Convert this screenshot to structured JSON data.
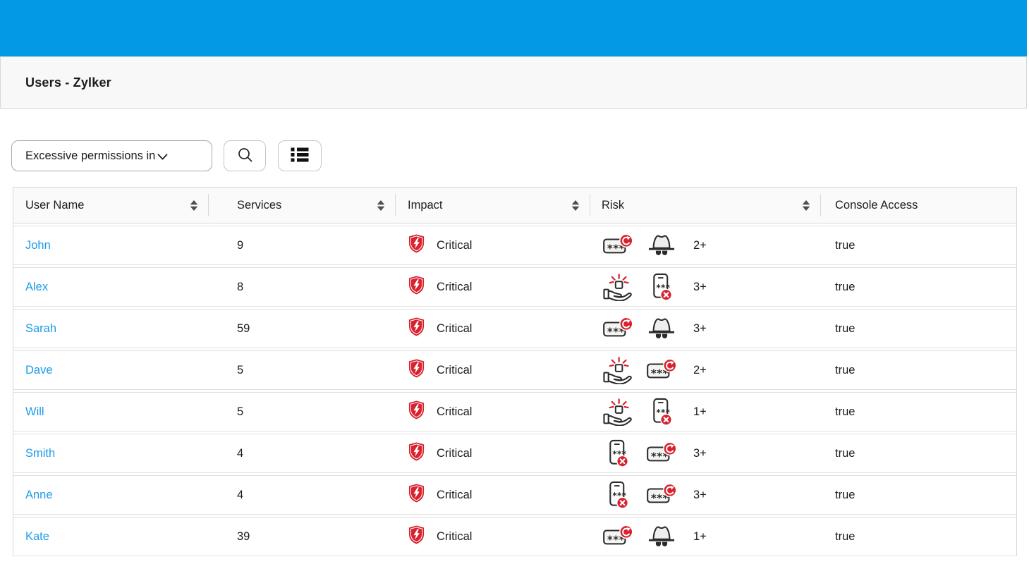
{
  "colors": {
    "topbar_blue": "#0499e4",
    "link_blue": "#1d9be9",
    "critical_red": "#d8222f"
  },
  "header": {
    "title": "Users - Zylker"
  },
  "toolbar": {
    "filter_dropdown": {
      "value": "Excessive permissions in",
      "icon": "chevron-down-icon"
    },
    "search_button": {
      "icon": "search-icon"
    },
    "list_view_button": {
      "icon": "list-view-icon"
    }
  },
  "table": {
    "columns": [
      {
        "key": "user_name",
        "label": "User Name",
        "sortable": true
      },
      {
        "key": "services",
        "label": "Services",
        "sortable": true
      },
      {
        "key": "impact",
        "label": "Impact",
        "sortable": true
      },
      {
        "key": "risk",
        "label": "Risk",
        "sortable": true
      },
      {
        "key": "console_access",
        "label": "Console Access",
        "sortable": false
      }
    ],
    "rows": [
      {
        "user_name": "John",
        "services": "9",
        "impact": {
          "icon": "critical-shield-icon",
          "label": "Critical"
        },
        "risk": {
          "icons": [
            "password-rotation-icon",
            "incognito-user-icon"
          ],
          "count": "2+"
        },
        "console_access": "true"
      },
      {
        "user_name": "Alex",
        "services": "8",
        "impact": {
          "icon": "critical-shield-icon",
          "label": "Critical"
        },
        "risk": {
          "icons": [
            "hand-privilege-icon",
            "phone-password-disabled-icon"
          ],
          "count": "3+"
        },
        "console_access": "true"
      },
      {
        "user_name": "Sarah",
        "services": "59",
        "impact": {
          "icon": "critical-shield-icon",
          "label": "Critical"
        },
        "risk": {
          "icons": [
            "password-rotation-icon",
            "incognito-user-icon"
          ],
          "count": "3+"
        },
        "console_access": "true"
      },
      {
        "user_name": "Dave",
        "services": "5",
        "impact": {
          "icon": "critical-shield-icon",
          "label": "Critical"
        },
        "risk": {
          "icons": [
            "hand-privilege-icon",
            "password-rotation-icon"
          ],
          "count": "2+"
        },
        "console_access": "true"
      },
      {
        "user_name": "Will",
        "services": "5",
        "impact": {
          "icon": "critical-shield-icon",
          "label": "Critical"
        },
        "risk": {
          "icons": [
            "hand-privilege-icon",
            "phone-password-disabled-icon"
          ],
          "count": "1+"
        },
        "console_access": "true"
      },
      {
        "user_name": "Smith",
        "services": "4",
        "impact": {
          "icon": "critical-shield-icon",
          "label": "Critical"
        },
        "risk": {
          "icons": [
            "phone-password-disabled-icon",
            "password-rotation-icon"
          ],
          "count": "3+"
        },
        "console_access": "true"
      },
      {
        "user_name": "Anne",
        "services": "4",
        "impact": {
          "icon": "critical-shield-icon",
          "label": "Critical"
        },
        "risk": {
          "icons": [
            "phone-password-disabled-icon",
            "password-rotation-icon"
          ],
          "count": "3+"
        },
        "console_access": "true"
      },
      {
        "user_name": "Kate",
        "services": "39",
        "impact": {
          "icon": "critical-shield-icon",
          "label": "Critical"
        },
        "risk": {
          "icons": [
            "password-rotation-icon",
            "incognito-user-icon"
          ],
          "count": "1+"
        },
        "console_access": "true"
      }
    ]
  }
}
